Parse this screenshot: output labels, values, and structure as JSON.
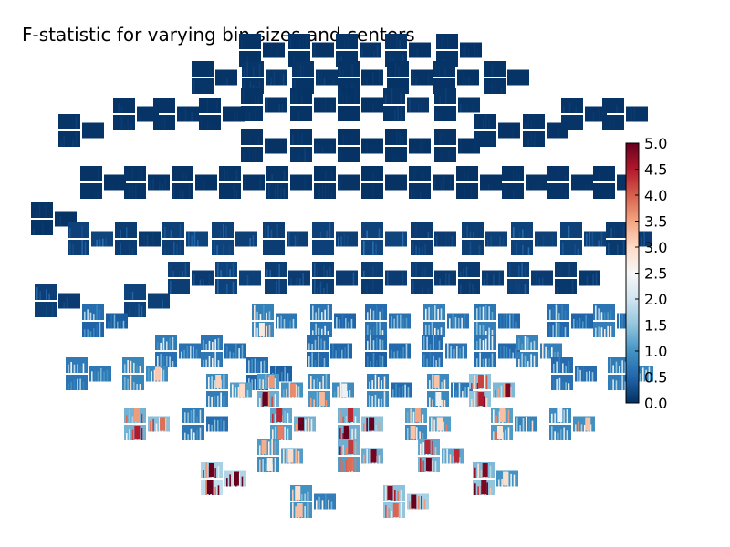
{
  "chart_data": {
    "type": "heatmap",
    "title": "F-statistic for varying bin sizes and centers",
    "colormap": "RdBu_r",
    "colors": {
      "low": "#053061",
      "mid": "#f7f7f7",
      "high": "#67001f"
    },
    "colorbar": {
      "vmin": 0.0,
      "vmax": 5.0,
      "tick_labels": [
        "0.0",
        "0.5",
        "1.0",
        "1.5",
        "2.0",
        "2.5",
        "3.0",
        "3.5",
        "4.0",
        "4.5",
        "5.0"
      ]
    },
    "sensor_layout": "head-shaped grid of sensor panels, each panel a bin size × bin center map",
    "intensity_by_region": {
      "frontal": 0.1,
      "central": 0.4,
      "parietal": 1.8,
      "occipital": 3.5
    }
  }
}
